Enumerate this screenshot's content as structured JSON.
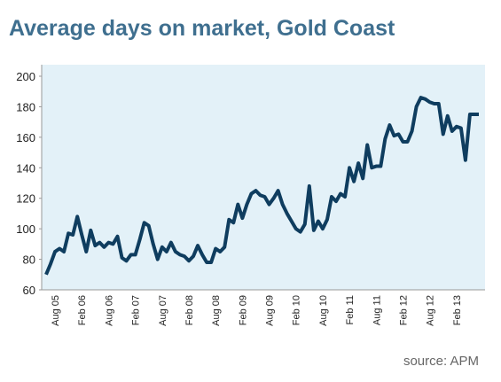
{
  "chart_data": {
    "type": "line",
    "title": "Average days on market, Gold Coast",
    "source": "source: APM",
    "categories": [
      null,
      null,
      "Aug 05",
      null,
      null,
      null,
      null,
      null,
      "Feb 06",
      null,
      null,
      null,
      null,
      null,
      "Aug 06",
      null,
      null,
      null,
      null,
      null,
      "Feb 07",
      null,
      null,
      null,
      null,
      null,
      "Aug 07",
      null,
      null,
      null,
      null,
      null,
      "Feb 08",
      null,
      null,
      null,
      null,
      null,
      "Aug 08",
      null,
      null,
      null,
      null,
      null,
      "Feb 09",
      null,
      null,
      null,
      null,
      null,
      "Aug 09",
      null,
      null,
      null,
      null,
      null,
      "Feb 10",
      null,
      null,
      null,
      null,
      null,
      "Aug 10",
      null,
      null,
      null,
      null,
      null,
      "Feb 11",
      null,
      null,
      null,
      null,
      null,
      "Aug 11",
      null,
      null,
      null,
      null,
      null,
      "Feb 12",
      null,
      null,
      null,
      null,
      null,
      "Aug 12",
      null,
      null,
      null,
      null,
      null,
      "Feb 13",
      null,
      null,
      null,
      null,
      null
    ],
    "values": [
      70,
      77,
      85,
      87,
      85,
      97,
      96,
      108,
      96,
      85,
      99,
      89,
      91,
      88,
      91,
      90,
      95,
      81,
      79,
      83,
      83,
      93,
      104,
      102,
      90,
      80,
      88,
      85,
      91,
      85,
      83,
      82,
      79,
      82,
      89,
      83,
      78,
      78,
      87,
      85,
      88,
      106,
      104,
      116,
      107,
      116,
      123,
      125,
      122,
      121,
      116,
      120,
      125,
      116,
      110,
      105,
      100,
      98,
      103,
      128,
      99,
      105,
      100,
      106,
      121,
      118,
      123,
      121,
      140,
      131,
      143,
      133,
      155,
      140,
      141,
      141,
      159,
      168,
      161,
      162,
      157,
      157,
      164,
      180,
      186,
      185,
      183,
      182,
      182,
      162,
      174,
      164,
      167,
      166,
      145,
      175,
      175,
      175
    ],
    "color": "#0f3d5f",
    "ylim": [
      60,
      200
    ],
    "yticks": [
      60,
      80,
      100,
      120,
      140,
      160,
      180,
      200
    ]
  }
}
